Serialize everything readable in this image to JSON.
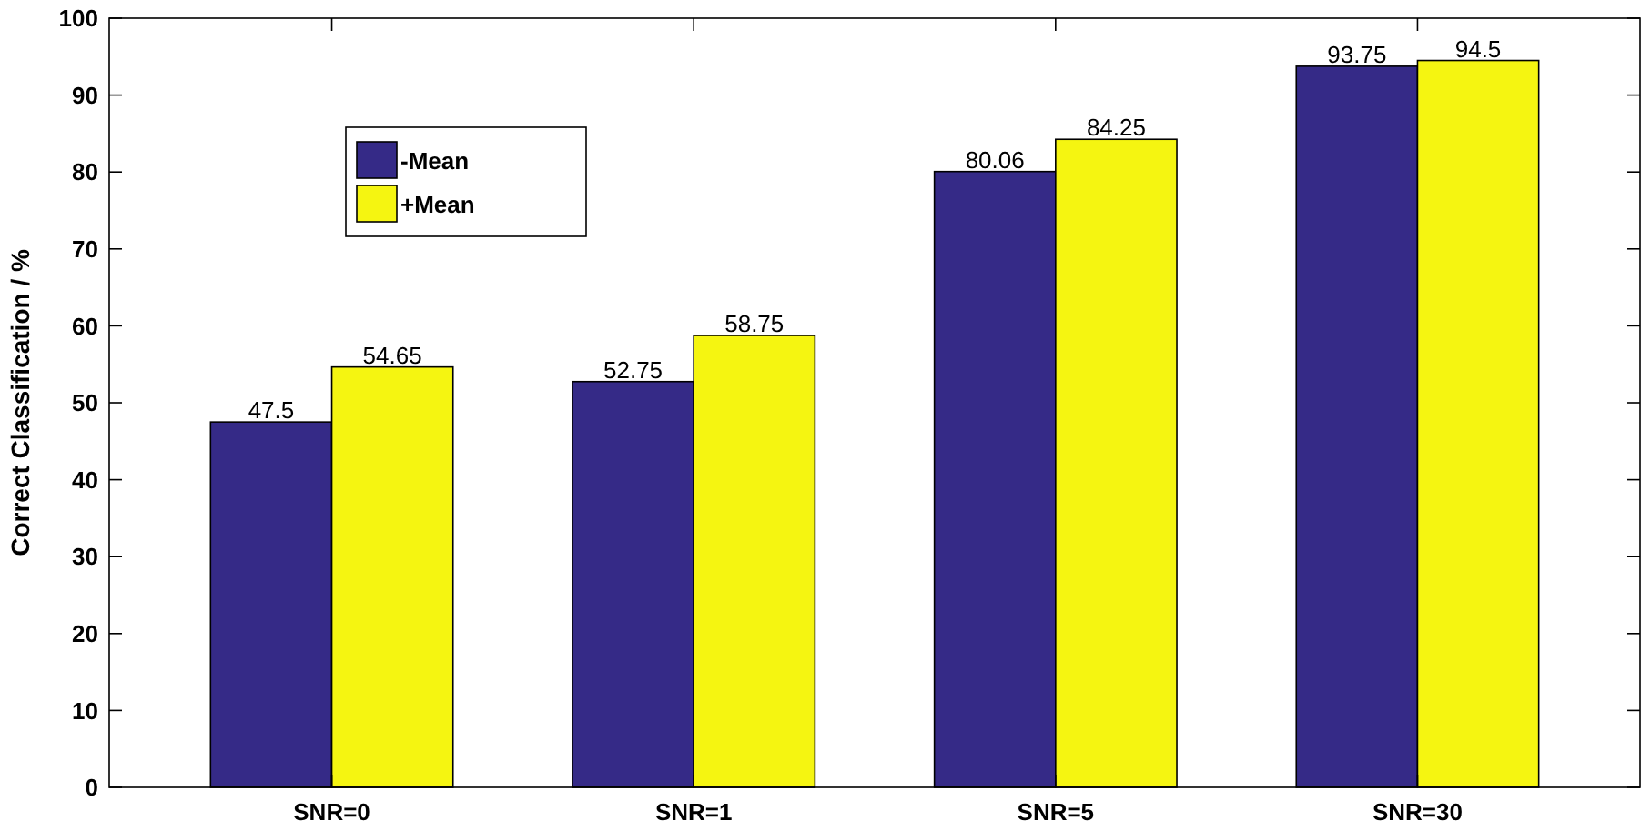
{
  "chart_data": {
    "type": "bar",
    "ylabel": "Correct Classification / %",
    "categories": [
      "SNR=0",
      "SNR=1",
      "SNR=5",
      "SNR=30"
    ],
    "series": [
      {
        "name": "-Mean",
        "color": "#352a87",
        "values": [
          47.5,
          52.75,
          80.06,
          93.75
        ]
      },
      {
        "name": "+Mean",
        "color": "#f5f511",
        "values": [
          54.65,
          58.75,
          84.25,
          94.5
        ]
      }
    ],
    "ylim": [
      0,
      100
    ],
    "yticks": [
      0,
      10,
      20,
      30,
      40,
      50,
      60,
      70,
      80,
      90,
      100
    ],
    "data_labels": true,
    "legend": "top left",
    "grid": false
  }
}
